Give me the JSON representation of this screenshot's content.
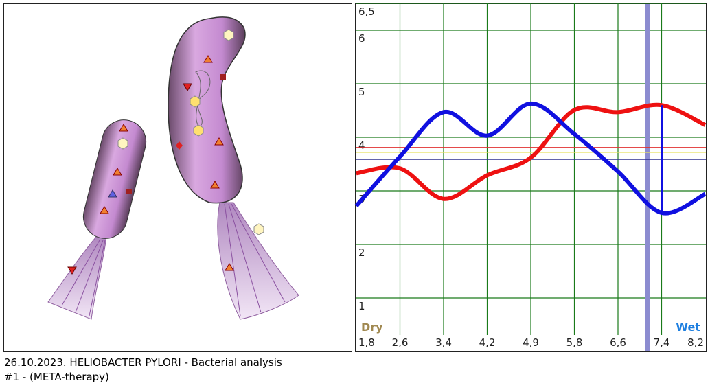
{
  "caption": {
    "line1": "26.10.2023. HELIOBACTER  PYLORI - Bacterial analysis",
    "line2": "#1 - (META-therapy)"
  },
  "chart_data": {
    "type": "line",
    "categories": [
      "1,8",
      "2,6",
      "3,4",
      "4,2",
      "4,9",
      "5,8",
      "6,6",
      "7,4",
      "8,2"
    ],
    "series": [
      {
        "color": "#ee1111",
        "values": [
          3.33,
          3.42,
          2.85,
          3.29,
          3.62,
          4.51,
          4.47,
          4.6,
          4.23
        ]
      },
      {
        "color": "#1010e0",
        "values": [
          2.72,
          3.64,
          4.47,
          4.03,
          4.63,
          4.06,
          3.36,
          2.59,
          2.94
        ]
      }
    ],
    "reference_lines": [
      {
        "value": 3.81,
        "color": "#e03030"
      },
      {
        "value": 3.72,
        "color": "#e8e060"
      },
      {
        "value": 3.59,
        "color": "#303090"
      }
    ],
    "ylim": [
      0,
      6.5
    ],
    "yticks": [
      {
        "value": 6.5,
        "label": "6,5"
      },
      6,
      5,
      4,
      3,
      2,
      1
    ],
    "grid": true,
    "left_label": "Dry",
    "right_label": "Wet"
  }
}
